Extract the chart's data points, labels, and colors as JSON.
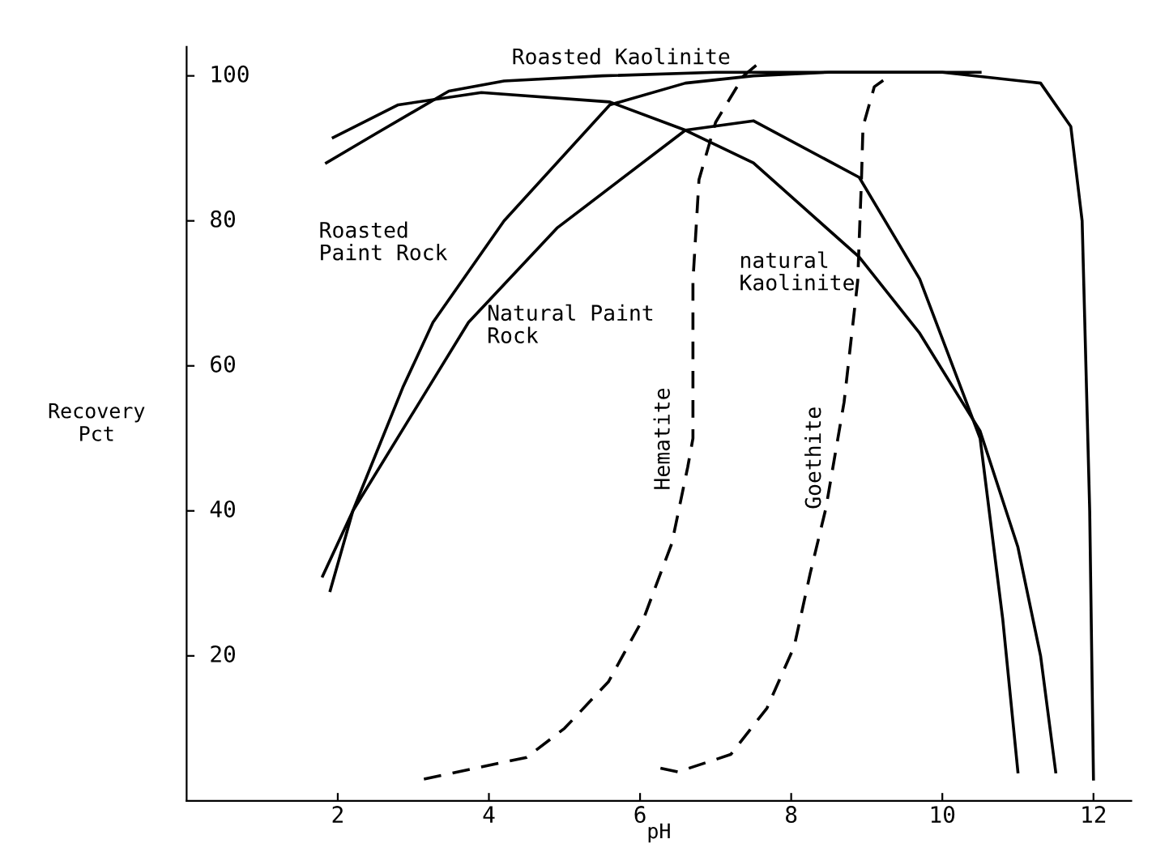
{
  "chart_data": {
    "type": "line",
    "xlabel": "pH",
    "ylabel": "Recovery\nPct",
    "xlim": [
      0,
      12.5
    ],
    "ylim": [
      0,
      104
    ],
    "xticks": [
      2,
      4,
      6,
      8,
      10,
      12
    ],
    "yticks": [
      20,
      40,
      60,
      80,
      100
    ],
    "grid": false,
    "legend": false,
    "marker": "none",
    "series": [
      {
        "color": "#000000",
        "line_style": "solid",
        "x": [
          1.9,
          2.2,
          2.86,
          3.26,
          4.2,
          5.6,
          6.6,
          7.5,
          8.5,
          10,
          11.3,
          11.7,
          11.85,
          11.95,
          12.0
        ],
        "values": [
          29,
          40,
          57,
          66,
          80,
          96,
          99,
          100,
          100.5,
          100.5,
          99,
          93,
          80,
          40,
          3
        ]
      },
      {
        "color": "#000000",
        "line_style": "solid",
        "x": [
          1.8,
          2.2,
          3.2,
          3.73,
          4.9,
          6.6,
          7.5,
          8.9,
          9.7,
          10.5,
          10.8,
          11.0
        ],
        "values": [
          31,
          40,
          57,
          66,
          79,
          92.5,
          93.8,
          86,
          72,
          50,
          25,
          4
        ]
      },
      {
        "color": "#000000",
        "line_style": "solid",
        "x": [
          1.94,
          2.8,
          3.9,
          5.6,
          6.6,
          7.5,
          8.9,
          9.7,
          10.5,
          11.0,
          11.3,
          11.5
        ],
        "values": [
          91.5,
          96,
          97.7,
          96.4,
          92.5,
          88,
          75,
          64.5,
          51,
          35,
          20,
          4
        ]
      },
      {
        "color": "#000000",
        "line_style": "solid",
        "x": [
          1.85,
          2.5,
          3.47,
          4.2,
          5.5,
          7.0,
          8.5,
          10.5
        ],
        "values": [
          88,
          92,
          97.9,
          99.3,
          100,
          100.5,
          100.5,
          100.5
        ]
      },
      {
        "color": "#000000",
        "line_style": "dashed",
        "x": [
          3.14,
          4.5,
          5.0,
          5.58,
          6.06,
          6.42,
          6.63,
          6.7,
          6.7,
          6.78,
          7.0,
          7.37,
          7.6
        ],
        "values": [
          3,
          6,
          10,
          16.4,
          25.5,
          35.5,
          46,
          50,
          71.7,
          85.7,
          93.6,
          100,
          102
        ]
      },
      {
        "color": "#000000",
        "line_style": "dashed",
        "x": [
          6.27,
          6.5,
          7.2,
          7.68,
          8.04,
          8.25,
          8.46,
          8.7,
          8.88,
          8.93,
          8.95,
          9.1,
          9.3
        ],
        "values": [
          4.5,
          4,
          6.4,
          12.8,
          21.3,
          31.3,
          40.4,
          55,
          71.7,
          85.7,
          93,
          98.5,
          100
        ]
      }
    ],
    "annotations": [
      "Roasted Kaolinite",
      "Roasted\nPaint Rock",
      "Natural Paint\nRock",
      "natural\nKaolinite",
      "Hematite",
      "Goethite"
    ]
  }
}
